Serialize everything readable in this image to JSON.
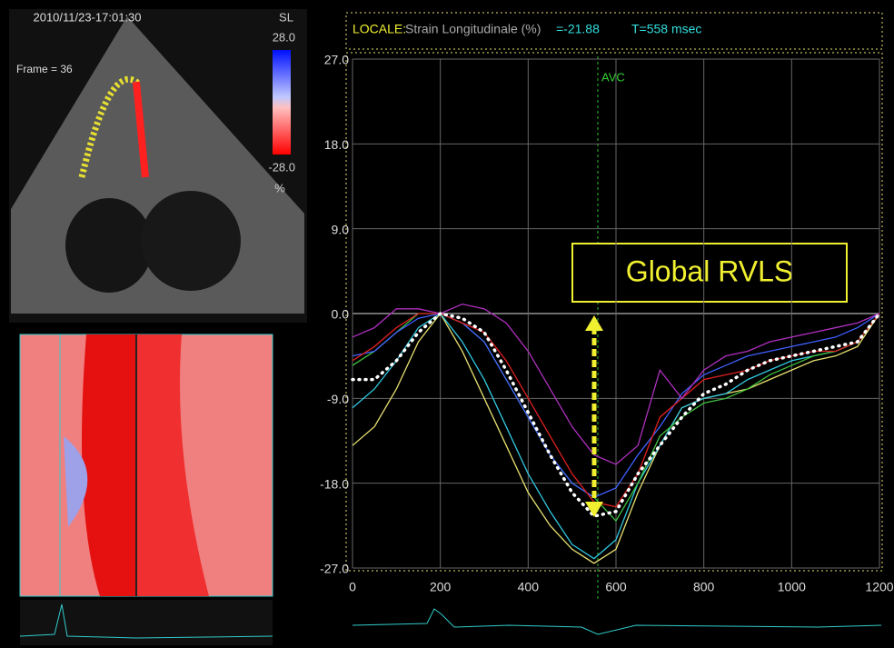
{
  "overlay": {
    "timestamp": "2010/11/23-17:01:30",
    "frame": "Frame = 36",
    "scale_title": "SL",
    "scale_max": "28.0",
    "scale_min": "-28.0",
    "scale_unit": "%"
  },
  "header": {
    "locale": "LOCALE:",
    "measure": "Strain Longitudinale (%)",
    "value": "=-21.88",
    "time": "T=558 msec"
  },
  "chart_data": {
    "type": "line",
    "annotations": [
      "AVC",
      "Global RVLS"
    ],
    "x": [
      0,
      50,
      100,
      150,
      200,
      250,
      300,
      350,
      400,
      450,
      500,
      550,
      600,
      650,
      700,
      750,
      800,
      850,
      900,
      950,
      1000,
      1050,
      1100,
      1150,
      1200
    ],
    "series": [
      {
        "color": "#e8e070",
        "values": [
          -14,
          -12,
          -8,
          -3,
          0,
          -4,
          -9,
          -14,
          -19,
          -22.5,
          -25,
          -26.5,
          -25,
          -19,
          -14,
          -10,
          -9,
          -8.5,
          -8,
          -7,
          -6,
          -5,
          -4.5,
          -3.5,
          0
        ]
      },
      {
        "color": "#30c8e0",
        "values": [
          -10,
          -8,
          -5,
          -1.5,
          0,
          -3,
          -7,
          -12,
          -17,
          -21,
          -24.5,
          -26,
          -24,
          -18,
          -14,
          -10,
          -9,
          -8.5,
          -7,
          -6,
          -5,
          -4.5,
          -4,
          -3,
          0
        ]
      },
      {
        "color": "#40c040",
        "values": [
          -5.5,
          -4,
          -2,
          0,
          0,
          -1,
          -3,
          -7,
          -11,
          -15,
          -18,
          -19.5,
          -22,
          -18,
          -13,
          -11,
          -9.5,
          -9,
          -8,
          -6.5,
          -5.5,
          -4.5,
          -4,
          -3,
          0
        ]
      },
      {
        "color": "#4060ff",
        "values": [
          -4.5,
          -4,
          -2,
          -0.5,
          0,
          -1,
          -3,
          -7,
          -11,
          -15,
          -18,
          -19.5,
          -18.5,
          -15,
          -12,
          -8.5,
          -6.5,
          -5.5,
          -4.5,
          -4,
          -3.5,
          -3,
          -2.5,
          -1.5,
          0
        ]
      },
      {
        "color": "#e02020",
        "values": [
          -5,
          -3.5,
          -1.5,
          0,
          0,
          -1,
          -2,
          -5,
          -9,
          -13,
          -17,
          -20,
          -20.5,
          -17,
          -11,
          -9,
          -7,
          -6.5,
          -6,
          -5,
          -4.5,
          -4,
          -4,
          -3,
          0
        ]
      },
      {
        "color": "#b030c0",
        "values": [
          -2.5,
          -1.5,
          0.5,
          0.5,
          0,
          1,
          0.5,
          -1,
          -4,
          -8,
          -12,
          -15,
          -16,
          -14,
          -6,
          -9,
          -6,
          -4.5,
          -4,
          -3,
          -2.5,
          -2,
          -1.5,
          -1,
          0
        ]
      },
      {
        "color": "#ffffff",
        "dashed": true,
        "values": [
          -7,
          -7,
          -5,
          -2,
          0,
          -0.5,
          -2,
          -6,
          -10.5,
          -15,
          -19,
          -21.5,
          -21,
          -17,
          -14,
          -11,
          -8.5,
          -7.5,
          -6,
          -5,
          -4.5,
          -4,
          -3.5,
          -3,
          0
        ]
      }
    ],
    "xlim": [
      0,
      1200
    ],
    "xticks": [
      0,
      200,
      400,
      600,
      800,
      1000,
      1200
    ],
    "ylim": [
      -27,
      27
    ],
    "yticks": [
      {
        "value": 27,
        "label": "27.0"
      },
      {
        "value": 18,
        "label": "18.0"
      },
      {
        "value": 9,
        "label": "9.0"
      },
      {
        "value": 0,
        "label": "0.0"
      },
      {
        "value": -9,
        "label": "-9.0"
      },
      {
        "value": -18,
        "label": "-18.0"
      },
      {
        "value": -27,
        "label": "-27.0"
      }
    ],
    "grid": true
  }
}
